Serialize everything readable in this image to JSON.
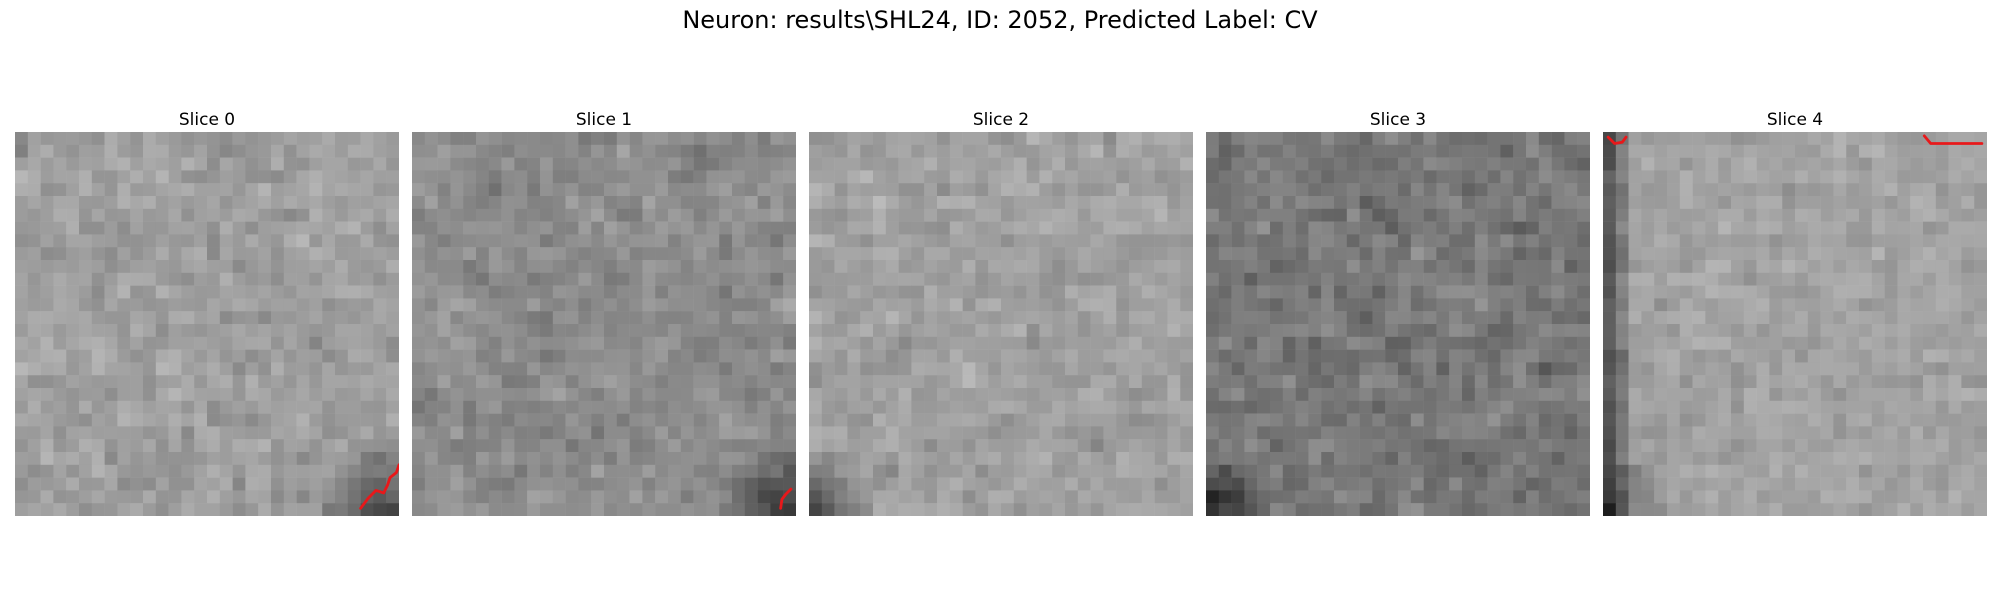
{
  "figure": {
    "title": "Neuron: results\\SHL24, ID: 2052, Predicted Label: CV"
  },
  "panels": [
    {
      "title": "Slice 0",
      "seed": 11,
      "brightness": 0.62,
      "spread": 0.18,
      "dark_corner": "bottom-right",
      "contour": [
        [
          27.0,
          29.4
        ],
        [
          27.6,
          28.6
        ],
        [
          28.2,
          28.0
        ],
        [
          28.8,
          28.2
        ],
        [
          29.1,
          27.6
        ],
        [
          29.3,
          27.0
        ],
        [
          29.8,
          26.6
        ],
        [
          30.0,
          26.0
        ]
      ]
    },
    {
      "title": "Slice 1",
      "seed": 23,
      "brightness": 0.55,
      "spread": 0.18,
      "dark_corner": "bottom-right",
      "contour": [
        [
          28.8,
          29.4
        ],
        [
          28.9,
          28.7
        ],
        [
          29.2,
          28.3
        ],
        [
          29.6,
          27.9
        ]
      ]
    },
    {
      "title": "Slice 2",
      "seed": 37,
      "brightness": 0.63,
      "spread": 0.17,
      "dark_corner": "bottom-left",
      "contour": []
    },
    {
      "title": "Slice 3",
      "seed": 41,
      "brightness": 0.47,
      "spread": 0.2,
      "dark_corner": "bottom-left",
      "contour": []
    },
    {
      "title": "Slice 4",
      "seed": 53,
      "brightness": 0.64,
      "spread": 0.15,
      "dark_corner": "left-edge",
      "contour": [
        [
          0.4,
          0.4
        ],
        [
          0.9,
          0.9
        ],
        [
          1.5,
          0.8
        ],
        [
          1.8,
          0.4
        ]
      ],
      "contour2": [
        [
          25.1,
          0.3
        ],
        [
          25.6,
          0.9
        ],
        [
          26.4,
          0.9
        ],
        [
          27.6,
          0.9
        ],
        [
          29.6,
          0.9
        ]
      ]
    }
  ],
  "colors": {
    "contour": "#e8181a"
  }
}
